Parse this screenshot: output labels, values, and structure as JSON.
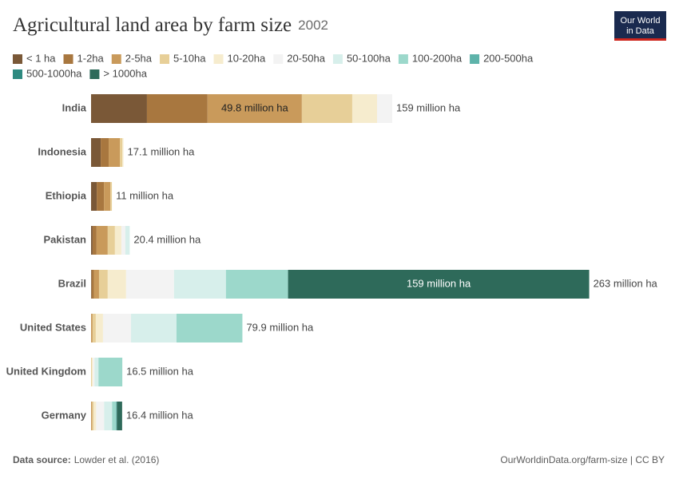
{
  "chart_data": {
    "type": "bar",
    "orientation": "horizontal",
    "stacked": true,
    "title": "Agricultural land area by farm size",
    "subtitle": "2002",
    "logo": [
      "Our World",
      "in Data"
    ],
    "source_label": "Data source:",
    "source": "Lowder et al. (2016)",
    "url": "OurWorldinData.org/farm-size | CC BY",
    "categories": [
      "India",
      "Indonesia",
      "Ethiopia",
      "Pakistan",
      "Brazil",
      "United States",
      "United Kingdom",
      "Germany"
    ],
    "total_labels": [
      "159 million ha",
      "17.1 million ha",
      "11 million ha",
      "20.4 million ha",
      "263 million ha",
      "79.9 million ha",
      "16.5 million ha",
      "16.4 million ha"
    ],
    "series": [
      {
        "name": "< 1 ha",
        "color": "#7a5837",
        "values": [
          29.5,
          5.1,
          3.0,
          0.8,
          0.3,
          null,
          null,
          null
        ]
      },
      {
        "name": "1-2ha",
        "color": "#a8773f",
        "values": [
          32.0,
          4.2,
          3.8,
          2.1,
          1.2,
          null,
          null,
          null
        ]
      },
      {
        "name": "2-5ha",
        "color": "#c99a5b",
        "values": [
          49.8,
          5.9,
          3.4,
          5.9,
          2.7,
          0.8,
          null,
          0.6
        ],
        "value_labels": [
          "49.8 million ha",
          null,
          null,
          null,
          null,
          null,
          null,
          null
        ]
      },
      {
        "name": "5-10ha",
        "color": "#e7cf98",
        "values": [
          26.6,
          1.3,
          0.8,
          3.8,
          4.6,
          1.7,
          0.4,
          0.8
        ]
      },
      {
        "name": "10-20ha",
        "color": "#f6ecce",
        "values": [
          13.1,
          0.6,
          null,
          3.4,
          9.7,
          3.8,
          0.6,
          1.3
        ]
      },
      {
        "name": "20-50ha",
        "color": "#f3f3f3",
        "values": [
          8.0,
          null,
          null,
          2.1,
          25.3,
          14.8,
          0.8,
          4.2
        ]
      },
      {
        "name": "50-100ha",
        "color": "#d7efeb",
        "values": [
          null,
          null,
          null,
          2.3,
          27.4,
          24.0,
          2.1,
          4.2
        ]
      },
      {
        "name": "100-200ha",
        "color": "#9cd8cb",
        "values": [
          null,
          null,
          null,
          null,
          32.8,
          34.8,
          12.6,
          2.1
        ]
      },
      {
        "name": "200-500ha",
        "color": "#5eb3aa",
        "values": [
          null,
          null,
          null,
          null,
          null,
          null,
          null,
          0.4
        ]
      },
      {
        "name": "500-1000ha",
        "color": "#2e8a80",
        "values": [
          null,
          null,
          null,
          null,
          null,
          null,
          null,
          null
        ]
      },
      {
        "name": "> 1000ha",
        "color": "#2e6a5a",
        "values": [
          null,
          null,
          null,
          null,
          159,
          null,
          null,
          2.8
        ],
        "value_labels": [
          null,
          null,
          null,
          null,
          "159 million ha",
          null,
          null,
          null
        ]
      }
    ]
  }
}
